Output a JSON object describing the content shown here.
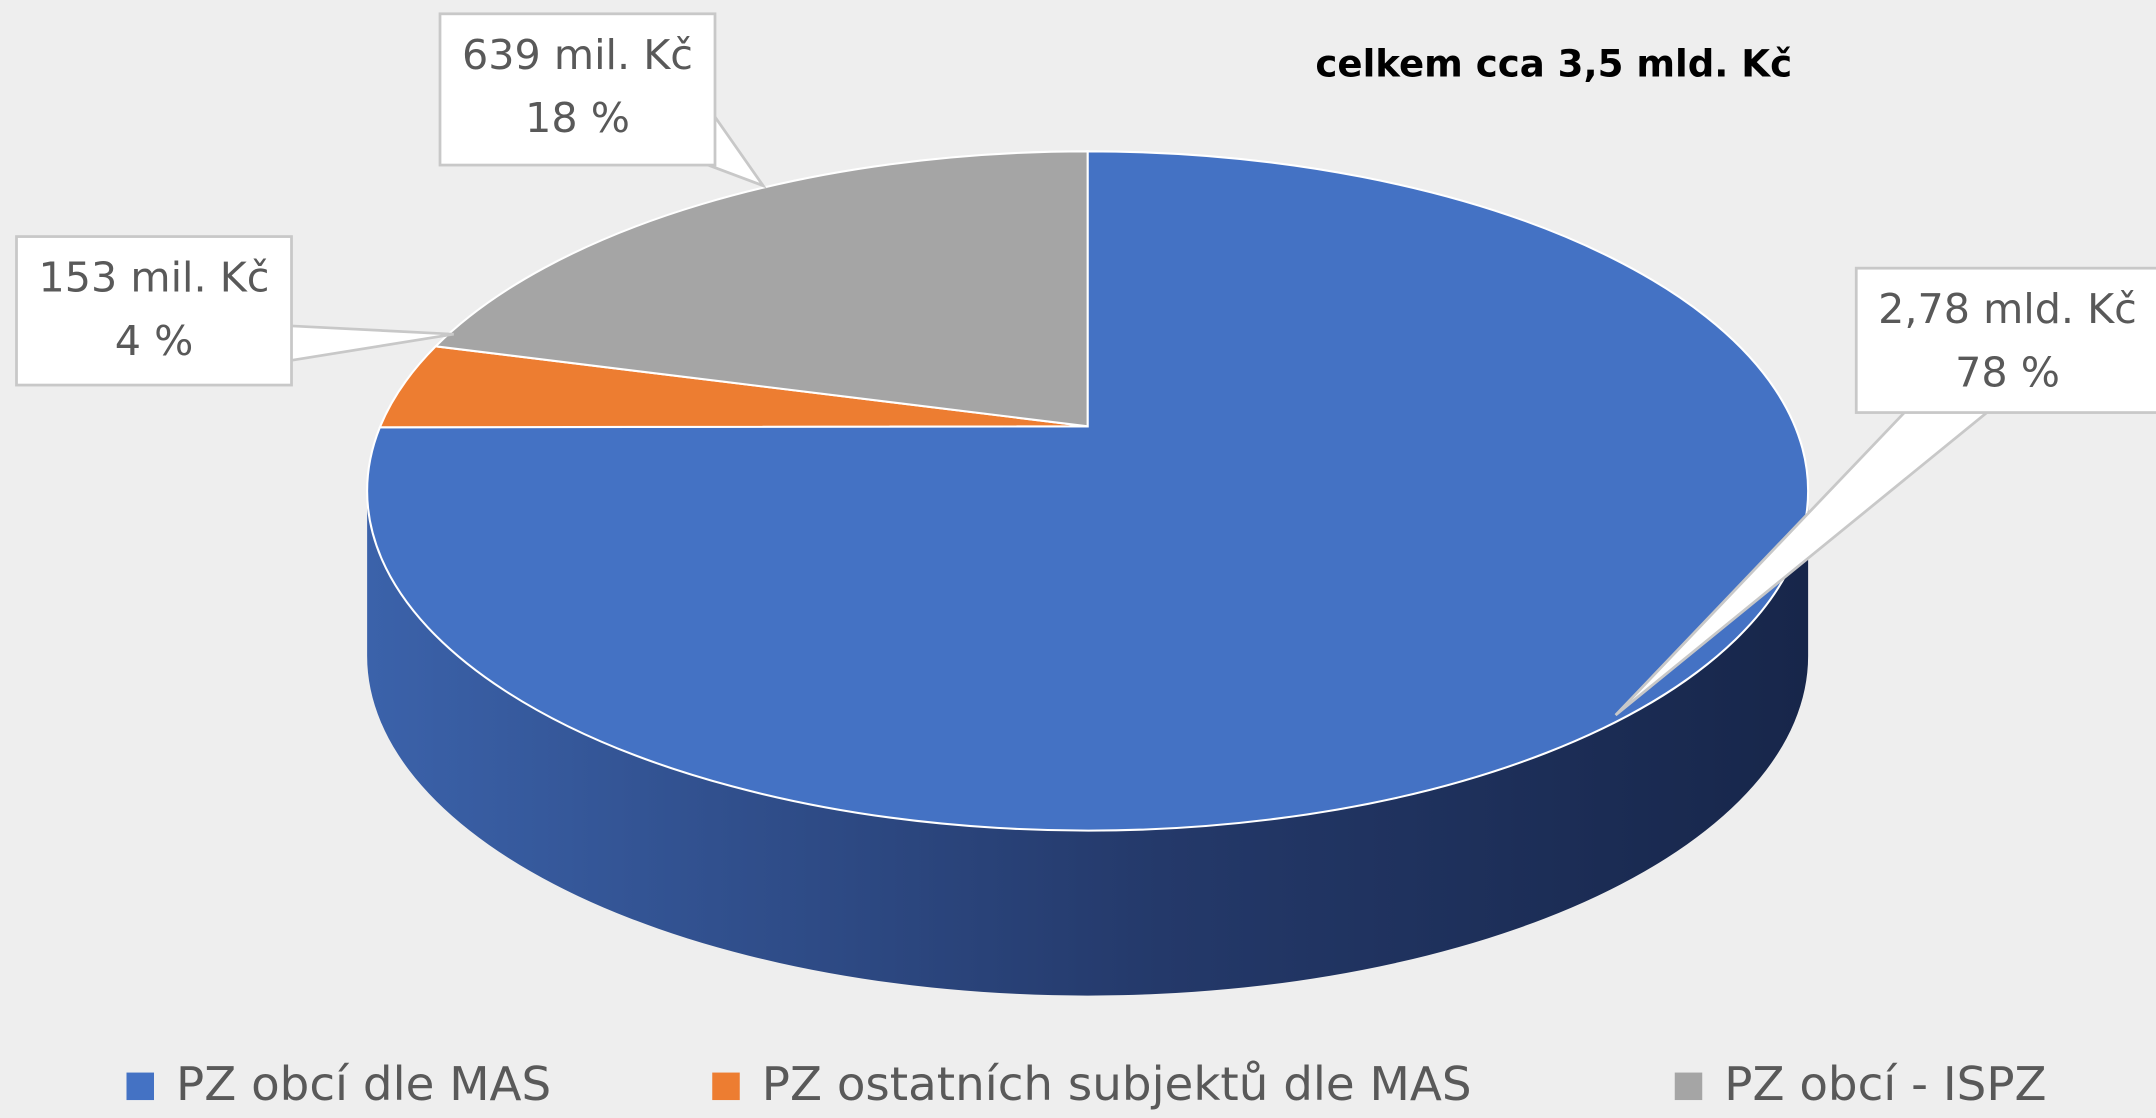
{
  "chart_data": {
    "type": "pie",
    "title": "celkem cca 3,5 mld. Kč",
    "categories": [
      "PZ obcí dle MAS",
      "PZ ostatních subjektů dle MAS",
      "PZ obcí - ISPZ"
    ],
    "values": [
      78,
      4,
      18
    ],
    "value_labels": [
      "78 %",
      "4 %",
      "18 %"
    ],
    "amount_labels": [
      "2,78 mld. Kč",
      "153 mil. Kč",
      "639 mil. Kč"
    ],
    "colors": [
      "#4472c4",
      "#ed7d31",
      "#a5a5a5"
    ]
  }
}
